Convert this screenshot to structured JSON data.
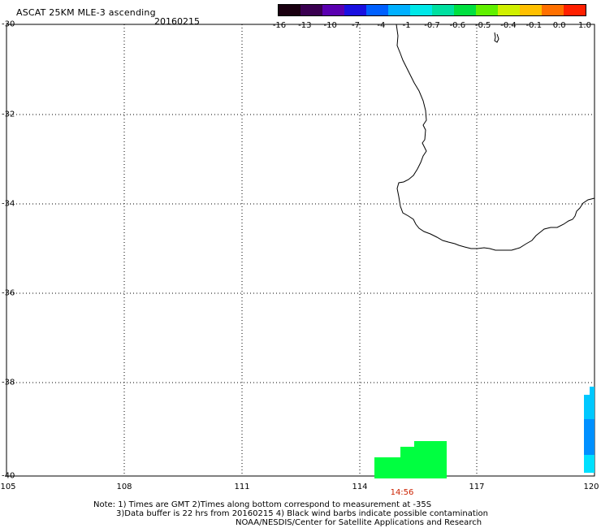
{
  "header": {
    "title": "ASCAT 25KM MLE-3 ascending",
    "date": "20160215"
  },
  "colorbar": {
    "labels": [
      "-16",
      "-13",
      "-10",
      "-7",
      "-4",
      "-1",
      "-0.7",
      "-0.6",
      "-0.5",
      "-0.4",
      "-0.1",
      "0.0",
      "1.0"
    ],
    "colors": [
      "#1a0010",
      "#3a0050",
      "#5a00b0",
      "#1a10e0",
      "#0060ff",
      "#00b0ff",
      "#00e8e8",
      "#00e0a0",
      "#00e040",
      "#60f000",
      "#d0f000",
      "#ffc000",
      "#ff7000",
      "#ff2000"
    ]
  },
  "map": {
    "lat_labels": [
      "-30",
      "-32",
      "-34",
      "-36",
      "-38",
      "-40"
    ],
    "lon_labels": [
      "105",
      "108",
      "111",
      "114",
      "117",
      "120"
    ],
    "time_label": "14:56",
    "swath_colors": {
      "green": "#00ff40",
      "cyan": "#00c8ff",
      "blue": "#0090ff",
      "aqua": "#00e0ff"
    }
  },
  "footer": {
    "line1": "Note: 1) Times are GMT 2)Times along bottom correspond to measurement at -35S",
    "line2": "3)Data buffer is 22 hrs from 20160215 4) Black wind barbs indicate possible contamination",
    "line3": "NOAA/NESDIS/Center for Satellite Applications and Research"
  }
}
